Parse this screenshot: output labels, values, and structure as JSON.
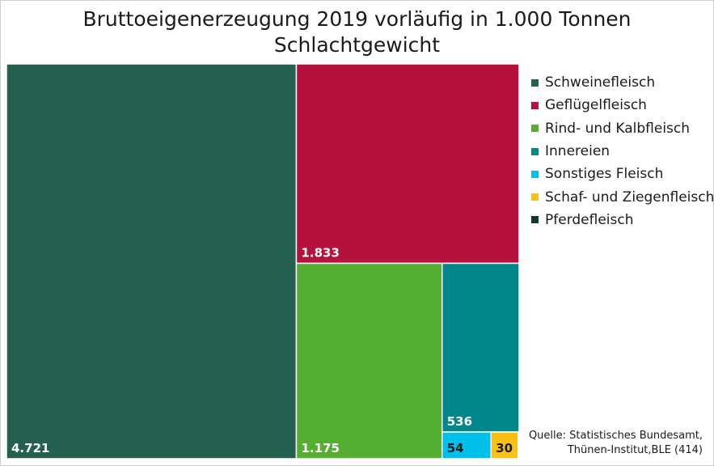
{
  "chart_data": {
    "type": "treemap",
    "title_line1": "Bruttoeigenerzeugung 2019 vorläufig in 1.000 Tonnen",
    "title_line2": "Schlachtgewicht",
    "unit": "1.000 Tonnen",
    "categories": [
      "Schweinefleisch",
      "Geflügelfleisch",
      "Rind- und Kalbfleisch",
      "Innereien",
      "Sonstiges Fleisch",
      "Schaf- und Ziegenfleisch",
      "Pferdefleisch"
    ],
    "values": [
      4721,
      1833,
      1175,
      536,
      54,
      30,
      1
    ],
    "value_labels": [
      "4.721",
      "1.833",
      "1.175",
      "536",
      "54",
      "30",
      ""
    ],
    "colors": [
      "#236050",
      "#b5113d",
      "#54ae32",
      "#00868b",
      "#00bfea",
      "#f8c114",
      "#11382c"
    ],
    "source_line1": "Quelle: Statistisches Bundesamt,",
    "source_line2": "Thünen-Institut,BLE (414)"
  },
  "legend": {
    "items": [
      {
        "label": "Schweinefleisch",
        "color": "#236050"
      },
      {
        "label": "Geflügelfleisch",
        "color": "#b5113d"
      },
      {
        "label": "Rind- und Kalbfleisch",
        "color": "#54ae32"
      },
      {
        "label": "Innereien",
        "color": "#00868b"
      },
      {
        "label": "Sonstiges Fleisch",
        "color": "#00bfea"
      },
      {
        "label": "Schaf- und Ziegenfleisch",
        "color": "#f8c114"
      },
      {
        "label": "Pferdefleisch",
        "color": "#11382c"
      }
    ]
  }
}
